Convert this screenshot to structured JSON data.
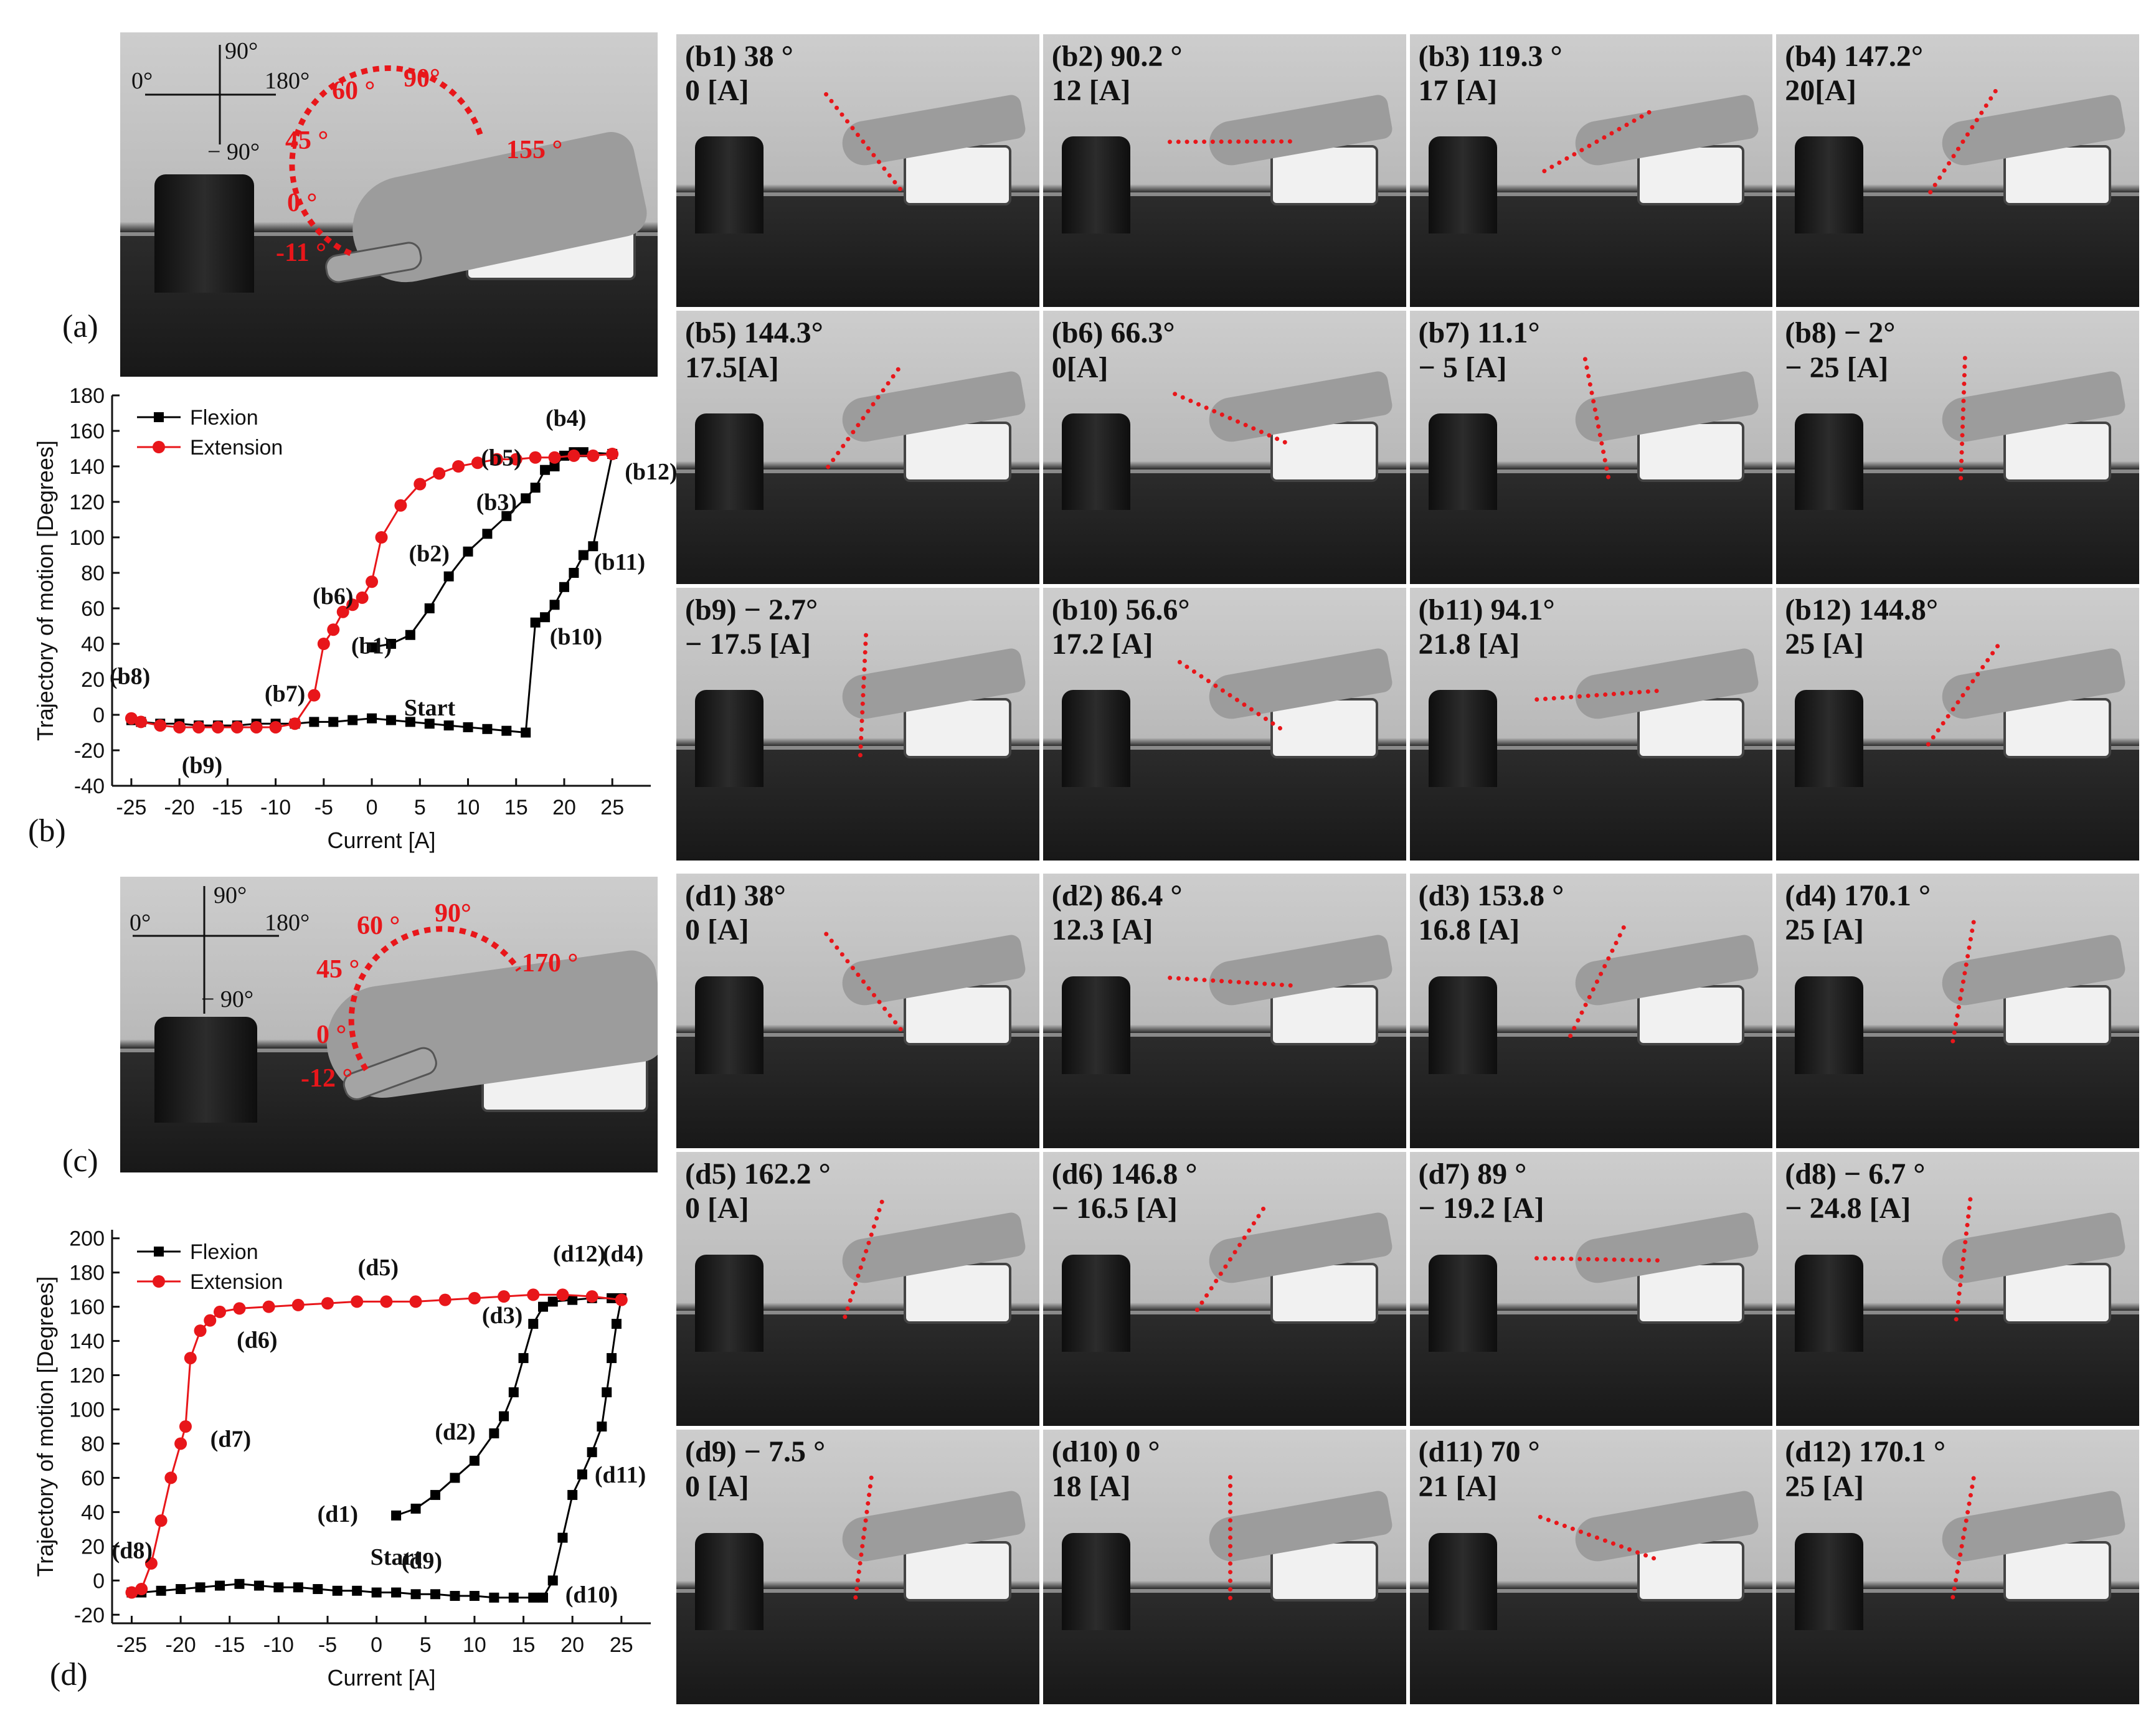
{
  "panels": {
    "a": {
      "label": "(a)",
      "axis": {
        "top": "90°",
        "left": "0°",
        "right": "180°",
        "bottom": "− 90°"
      },
      "angles": [
        "60 °",
        "90°",
        "45 °",
        "155 °",
        "0 °",
        "-11 °"
      ]
    },
    "b": {
      "label": "(b)"
    },
    "c": {
      "label": "(c)",
      "axis": {
        "top": "90°",
        "left": "0°",
        "right": "180°",
        "bottom": "− 90°"
      },
      "angles": [
        "60 °",
        "90°",
        "45 °",
        "170 °",
        "0 °",
        "-12 °"
      ]
    },
    "d": {
      "label": "(d)"
    }
  },
  "frames_b": [
    {
      "id": "b1",
      "angle": "38 °",
      "current": "0 [A]"
    },
    {
      "id": "b2",
      "angle": "90.2 °",
      "current": "12 [A]"
    },
    {
      "id": "b3",
      "angle": "119.3 °",
      "current": "17 [A]"
    },
    {
      "id": "b4",
      "angle": "147.2°",
      "current": "20[A]"
    },
    {
      "id": "b5",
      "angle": "144.3°",
      "current": "17.5[A]"
    },
    {
      "id": "b6",
      "angle": "66.3°",
      "current": "0[A]"
    },
    {
      "id": "b7",
      "angle": "11.1°",
      "current": "− 5 [A]"
    },
    {
      "id": "b8",
      "angle": "− 2°",
      "current": "− 25 [A]"
    },
    {
      "id": "b9",
      "angle": "− 2.7°",
      "current": "− 17.5 [A]"
    },
    {
      "id": "b10",
      "angle": "56.6°",
      "current": "17.2 [A]"
    },
    {
      "id": "b11",
      "angle": "94.1°",
      "current": "21.8 [A]"
    },
    {
      "id": "b12",
      "angle": "144.8°",
      "current": "25 [A]"
    }
  ],
  "frames_d": [
    {
      "id": "d1",
      "angle": "38°",
      "current": "0 [A]"
    },
    {
      "id": "d2",
      "angle": "86.4 °",
      "current": "12.3 [A]"
    },
    {
      "id": "d3",
      "angle": "153.8 °",
      "current": "16.8 [A]"
    },
    {
      "id": "d4",
      "angle": "170.1 °",
      "current": "25 [A]"
    },
    {
      "id": "d5",
      "angle": "162.2 °",
      "current": "0 [A]"
    },
    {
      "id": "d6",
      "angle": "146.8 °",
      "current": "− 16.5 [A]"
    },
    {
      "id": "d7",
      "angle": "89 °",
      "current": "− 19.2 [A]"
    },
    {
      "id": "d8",
      "angle": "− 6.7 °",
      "current": "− 24.8 [A]"
    },
    {
      "id": "d9",
      "angle": "− 7.5 °",
      "current": "0 [A]"
    },
    {
      "id": "d10",
      "angle": "0 °",
      "current": "18 [A]"
    },
    {
      "id": "d11",
      "angle": "70 °",
      "current": "21 [A]"
    },
    {
      "id": "d12",
      "angle": "170.1 °",
      "current": "25 [A]"
    }
  ],
  "chart_data": [
    {
      "type": "line",
      "xlabel": "Current [A]",
      "ylabel": "Trajectory of motion [Degrees]",
      "xlim": [
        -27,
        29
      ],
      "ylim": [
        -40,
        180
      ],
      "xticks": [
        -25,
        -20,
        -15,
        -10,
        -5,
        0,
        5,
        10,
        15,
        20,
        25
      ],
      "yticks": [
        -40,
        -20,
        0,
        20,
        40,
        60,
        80,
        100,
        120,
        140,
        160,
        180
      ],
      "legend": "top-left",
      "series": [
        {
          "name": "Flexion",
          "color": "#000000",
          "marker": "square",
          "x": [
            0,
            2,
            4,
            6,
            8,
            10,
            12,
            14,
            16,
            17,
            18,
            19,
            20,
            21,
            22,
            25,
            23,
            22,
            21,
            20,
            19,
            18,
            17,
            16,
            14,
            12,
            10,
            8,
            6,
            4,
            2,
            0,
            -2,
            -4,
            -6,
            -8,
            -10,
            -12,
            -14,
            -16,
            -18,
            -20,
            -22,
            -24,
            -25
          ],
          "y": [
            38,
            40,
            45,
            60,
            78,
            92,
            102,
            112,
            122,
            128,
            138,
            140,
            146,
            148,
            148,
            147,
            95,
            90,
            80,
            72,
            62,
            55,
            52,
            -10,
            -9,
            -8,
            -7,
            -6,
            -5,
            -4,
            -3,
            -2,
            -3,
            -4,
            -4,
            -5,
            -5,
            -5,
            -6,
            -6,
            -6,
            -5,
            -5,
            -4,
            -3
          ]
        },
        {
          "name": "Extension",
          "color": "#e8161a",
          "marker": "circle",
          "x": [
            25,
            23,
            21,
            19,
            17,
            15,
            13,
            11,
            9,
            7,
            5,
            3,
            1,
            0,
            -1,
            -2,
            -3,
            -4,
            -5,
            -6,
            -8,
            -10,
            -12,
            -14,
            -16,
            -18,
            -20,
            -22,
            -24,
            -25
          ],
          "y": [
            147,
            146,
            146,
            145,
            145,
            144,
            144,
            142,
            140,
            136,
            130,
            118,
            100,
            75,
            66,
            62,
            58,
            48,
            40,
            11,
            -5,
            -7,
            -7,
            -7,
            -7,
            -7,
            -7,
            -6,
            -4,
            -2
          ]
        }
      ],
      "annotations": [
        {
          "text": "(b1)",
          "x": 4,
          "y": 38
        },
        {
          "text": "Start",
          "x": 4,
          "y": 12
        },
        {
          "text": "(b2)",
          "x": 10,
          "y": 90
        },
        {
          "text": "(b3)",
          "x": 17,
          "y": 119
        },
        {
          "text": "(b4)",
          "x": 20,
          "y": 147
        },
        {
          "text": "(b5)",
          "x": 17.5,
          "y": 144
        },
        {
          "text": "(b6)",
          "x": 0,
          "y": 66
        },
        {
          "text": "(b7)",
          "x": -5,
          "y": 11
        },
        {
          "text": "(b8)",
          "x": -25,
          "y": -2
        },
        {
          "text": "(b9)",
          "x": -17.5,
          "y": -3
        },
        {
          "text": "(b10)",
          "x": 17.2,
          "y": 52
        },
        {
          "text": "(b11)",
          "x": 21.8,
          "y": 94
        },
        {
          "text": "(b12)",
          "x": 25,
          "y": 145
        }
      ]
    },
    {
      "type": "line",
      "xlabel": "Current [A]",
      "ylabel": "Trajectory of motion [Degrees]",
      "xlim": [
        -27,
        28
      ],
      "ylim": [
        -25,
        205
      ],
      "xticks": [
        -25,
        -20,
        -15,
        -10,
        -5,
        0,
        5,
        10,
        15,
        20,
        25
      ],
      "yticks": [
        -20,
        0,
        20,
        40,
        60,
        80,
        100,
        120,
        140,
        160,
        180,
        200
      ],
      "legend": "top-left",
      "series": [
        {
          "name": "Flexion",
          "color": "#000000",
          "marker": "square",
          "x": [
            2,
            4,
            6,
            8,
            10,
            12,
            13,
            14,
            15,
            16,
            17,
            18,
            20,
            22,
            24,
            25,
            24.5,
            24,
            23.5,
            23,
            22,
            21,
            20,
            19,
            18,
            17,
            16,
            14,
            12,
            10,
            8,
            6,
            4,
            2,
            0,
            -2,
            -4,
            -6,
            -8,
            -10,
            -12,
            -14,
            -16,
            -18,
            -20,
            -22,
            -24,
            -25
          ],
          "y": [
            38,
            42,
            50,
            60,
            70,
            86,
            96,
            110,
            130,
            150,
            160,
            163,
            164,
            165,
            165,
            165,
            150,
            130,
            110,
            90,
            75,
            62,
            50,
            25,
            0,
            -10,
            -10,
            -10,
            -10,
            -9,
            -9,
            -8,
            -8,
            -7,
            -7,
            -6,
            -6,
            -5,
            -4,
            -4,
            -3,
            -2,
            -3,
            -4,
            -5,
            -6,
            -7,
            -7
          ]
        },
        {
          "name": "Extension",
          "color": "#e8161a",
          "marker": "circle",
          "x": [
            25,
            22,
            19,
            16,
            13,
            10,
            7,
            4,
            1,
            -2,
            -5,
            -8,
            -11,
            -14,
            -16,
            -17,
            -18,
            -19,
            -19.5,
            -20,
            -21,
            -22,
            -23,
            -24,
            -25
          ],
          "y": [
            164,
            166,
            167,
            167,
            166,
            165,
            164,
            163,
            163,
            163,
            162,
            161,
            160,
            159,
            157,
            152,
            146,
            130,
            90,
            80,
            60,
            35,
            10,
            -5,
            -7
          ]
        }
      ],
      "annotations": [
        {
          "text": "(d1)",
          "x": 0,
          "y": 38
        },
        {
          "text": "Start",
          "x": 0,
          "y": 22
        },
        {
          "text": "(d2)",
          "x": 12,
          "y": 86
        },
        {
          "text": "(d3)",
          "x": 16.8,
          "y": 154
        },
        {
          "text": "(d4)",
          "x": 25,
          "y": 170
        },
        {
          "text": "(d5)",
          "x": 0,
          "y": 162
        },
        {
          "text": "(d6)",
          "x": -16.5,
          "y": 147
        },
        {
          "text": "(d7)",
          "x": -19.2,
          "y": 89
        },
        {
          "text": "(d8)",
          "x": -24.8,
          "y": -7
        },
        {
          "text": "(d9)",
          "x": 0,
          "y": -7.5
        },
        {
          "text": "(d10)",
          "x": 18,
          "y": 0
        },
        {
          "text": "(d11)",
          "x": 21,
          "y": 70
        },
        {
          "text": "(d12)",
          "x": 25,
          "y": 170
        }
      ]
    }
  ]
}
